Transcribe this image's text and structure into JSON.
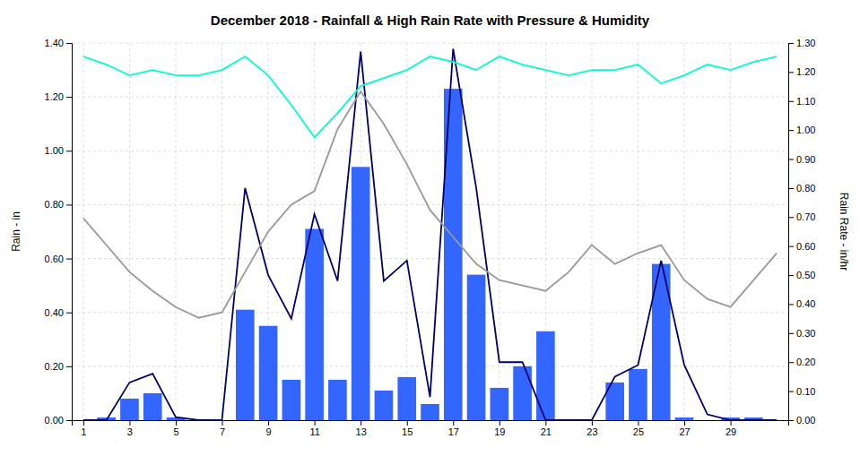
{
  "chart_data": {
    "type": "bar",
    "title": "December 2018 - Rainfall & High Rain Rate with Pressure & Humidity",
    "ylabel": "Rain - in",
    "y2label": "Rain Rate - in/hr",
    "x": [
      1,
      2,
      3,
      4,
      5,
      6,
      7,
      8,
      9,
      10,
      11,
      12,
      13,
      14,
      15,
      16,
      17,
      18,
      19,
      20,
      21,
      22,
      23,
      24,
      25,
      26,
      27,
      28,
      29,
      30,
      31
    ],
    "xlim": [
      0.5,
      31.5
    ],
    "xticks": [
      1,
      3,
      5,
      7,
      9,
      11,
      13,
      15,
      17,
      19,
      21,
      23,
      25,
      27,
      29
    ],
    "ylim": [
      0.0,
      1.4
    ],
    "yticks": [
      {
        "value": 0.0,
        "label": "0.00"
      },
      {
        "value": 0.2,
        "label": "0.20"
      },
      {
        "value": 0.4,
        "label": "0.40"
      },
      {
        "value": 0.6,
        "label": "0.60"
      },
      {
        "value": 0.8,
        "label": "0.80"
      },
      {
        "value": 1.0,
        "label": "1.00"
      },
      {
        "value": 1.2,
        "label": "1.20"
      },
      {
        "value": 1.4,
        "label": "1.40"
      }
    ],
    "y2lim": [
      0.0,
      1.3
    ],
    "y2ticks": [
      {
        "value": 0.0,
        "label": "0.00"
      },
      {
        "value": 0.1,
        "label": "0.10"
      },
      {
        "value": 0.2,
        "label": "0.20"
      },
      {
        "value": 0.3,
        "label": "0.30"
      },
      {
        "value": 0.4,
        "label": "0.40"
      },
      {
        "value": 0.5,
        "label": "0.50"
      },
      {
        "value": 0.6,
        "label": "0.60"
      },
      {
        "value": 0.7,
        "label": "0.70"
      },
      {
        "value": 0.8,
        "label": "0.80"
      },
      {
        "value": 0.9,
        "label": "0.90"
      },
      {
        "value": 1.0,
        "label": "1.00"
      },
      {
        "value": 1.1,
        "label": "1.10"
      },
      {
        "value": 1.2,
        "label": "1.20"
      },
      {
        "value": 1.3,
        "label": "1.30"
      }
    ],
    "grid": true,
    "series": [
      {
        "type": "bar",
        "color": "#3366ff",
        "values": [
          0.0,
          0.01,
          0.08,
          0.1,
          0.01,
          0.0,
          0.0,
          0.41,
          0.35,
          0.15,
          0.71,
          0.15,
          0.94,
          0.11,
          0.16,
          0.06,
          1.23,
          0.54,
          0.12,
          0.2,
          0.33,
          0.0,
          0.0,
          0.14,
          0.19,
          0.58,
          0.01,
          0.0,
          0.01,
          0.01,
          0.0
        ]
      },
      {
        "type": "line",
        "axis": "y2",
        "color": "#000066",
        "values": [
          0.0,
          0.0,
          0.13,
          0.16,
          0.01,
          0.0,
          0.0,
          0.8,
          0.5,
          0.35,
          0.71,
          0.48,
          1.27,
          0.48,
          0.55,
          0.08,
          1.28,
          0.8,
          0.2,
          0.2,
          0.0,
          0.0,
          0.0,
          0.15,
          0.19,
          0.55,
          0.19,
          0.02,
          0.0,
          0.0,
          0.0
        ]
      },
      {
        "type": "line",
        "color": "#00ffcc",
        "values": [
          1.35,
          1.32,
          1.28,
          1.3,
          1.28,
          1.28,
          1.3,
          1.35,
          1.28,
          1.17,
          1.05,
          1.14,
          1.24,
          1.27,
          1.3,
          1.35,
          1.33,
          1.3,
          1.35,
          1.32,
          1.3,
          1.28,
          1.3,
          1.3,
          1.32,
          1.25,
          1.28,
          1.32,
          1.3,
          1.33,
          1.35
        ]
      },
      {
        "type": "line",
        "color": "#999999",
        "values": [
          0.75,
          0.65,
          0.55,
          0.48,
          0.42,
          0.38,
          0.4,
          0.55,
          0.7,
          0.8,
          0.85,
          1.08,
          1.22,
          1.1,
          0.95,
          0.78,
          0.68,
          0.58,
          0.52,
          0.5,
          0.48,
          0.55,
          0.65,
          0.58,
          0.62,
          0.65,
          0.52,
          0.45,
          0.42,
          0.52,
          0.62
        ]
      }
    ]
  }
}
